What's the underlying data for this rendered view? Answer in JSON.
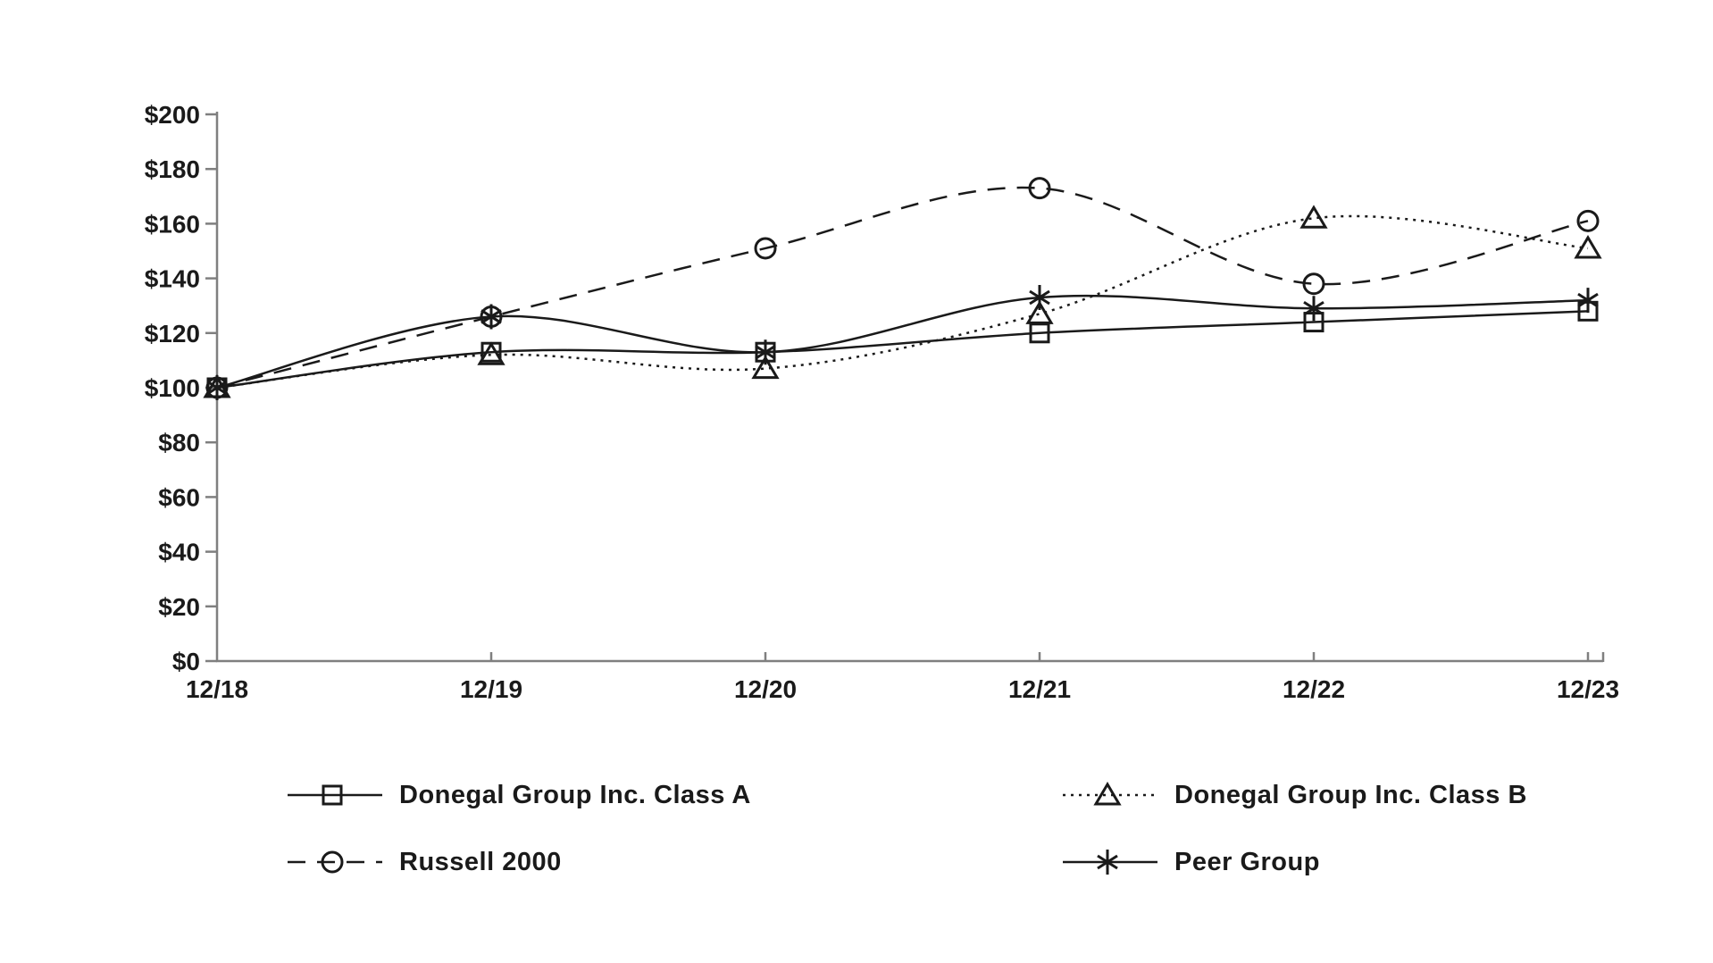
{
  "page": {
    "background_color": "#ffffff",
    "text_color": "#1a1a1a",
    "axis_color": "#7f7f7f"
  },
  "chart_data": {
    "type": "line",
    "title": "",
    "xlabel": "",
    "ylabel": "",
    "categories": [
      "12/18",
      "12/19",
      "12/20",
      "12/21",
      "12/22",
      "12/23"
    ],
    "ylim": [
      0,
      200
    ],
    "ytick_step": 20,
    "yticks": [
      {
        "value": 0,
        "label": "$0"
      },
      {
        "value": 20,
        "label": "$20"
      },
      {
        "value": 40,
        "label": "$40"
      },
      {
        "value": 60,
        "label": "$60"
      },
      {
        "value": 80,
        "label": "$80"
      },
      {
        "value": 100,
        "label": "$100"
      },
      {
        "value": 120,
        "label": "$120"
      },
      {
        "value": 140,
        "label": "$140"
      },
      {
        "value": 160,
        "label": "$160"
      },
      {
        "value": 180,
        "label": "$180"
      },
      {
        "value": 200,
        "label": "$200"
      }
    ],
    "grid": false,
    "legend_position": "bottom",
    "line_color": "#1a1a1a",
    "series": [
      {
        "name": "Donegal Group Inc. Class A",
        "marker": "square",
        "line_style": "solid",
        "values": [
          100,
          113,
          113,
          120,
          124,
          128
        ]
      },
      {
        "name": "Donegal Group Inc. Class B",
        "marker": "triangle",
        "line_style": "dotted",
        "values": [
          100,
          112,
          107,
          127,
          162,
          151
        ]
      },
      {
        "name": "Russell 2000",
        "marker": "circle",
        "line_style": "dashed",
        "values": [
          100,
          126,
          151,
          173,
          138,
          161
        ]
      },
      {
        "name": "Peer Group",
        "marker": "asterisk",
        "line_style": "solid",
        "values": [
          100,
          126,
          113,
          133,
          129,
          132
        ]
      }
    ]
  }
}
